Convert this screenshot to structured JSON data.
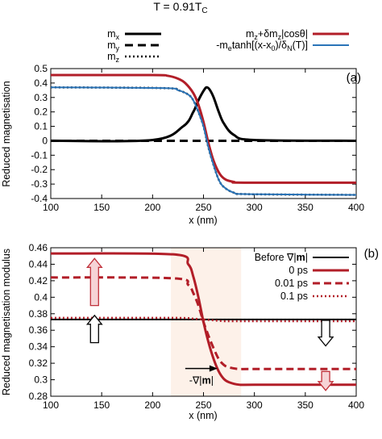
{
  "figure": {
    "title": "T = 0.91T",
    "title_sub": "C"
  },
  "chart_data": [
    {
      "type": "line",
      "panel_label": "(a)",
      "xlabel": "x (nm)",
      "ylabel": "Reduced magnetisation",
      "xlim": [
        100,
        400
      ],
      "ylim": [
        -0.4,
        0.5
      ],
      "xticks": [
        100,
        150,
        200,
        250,
        300,
        350,
        400
      ],
      "yticks": [
        -0.4,
        -0.3,
        -0.2,
        -0.1,
        0,
        0.1,
        0.2,
        0.3,
        0.4,
        0.5
      ],
      "ytick_labels": [
        "-0.4",
        "-0.3",
        "-0.2",
        "-0.1",
        "0",
        "0.1",
        "0.2",
        "0.3",
        "0.4",
        "0.5"
      ],
      "grid": false,
      "legend_left": [
        {
          "label": "m",
          "sub": "x"
        },
        {
          "label": "m",
          "sub": "y"
        },
        {
          "label": "m",
          "sub": "z"
        }
      ],
      "legend_right": [
        {
          "label": "m",
          "sub": "z",
          "rest": "+δm",
          "sub2": "z",
          "rest2": "|cosθ|"
        },
        {
          "label": "-m",
          "sub": "e",
          "rest": "tanh[(x-x",
          "sub2": "0",
          "rest2": ")/δ",
          "sub3": "N",
          "rest3": "(T)]"
        }
      ],
      "series": [
        {
          "x": [
            100,
            200,
            230,
            240,
            245,
            250,
            253,
            256,
            260,
            265,
            270,
            280,
            300,
            400
          ],
          "y": [
            0,
            0.005,
            0.1,
            0.2,
            0.28,
            0.345,
            0.37,
            0.355,
            0.3,
            0.2,
            0.12,
            0.04,
            0.005,
            0
          ]
        },
        {
          "x": [
            100,
            400
          ],
          "y": [
            0,
            0
          ]
        },
        {
          "x": [
            100,
            210,
            225,
            235,
            240,
            245,
            250,
            255,
            260,
            265,
            270,
            280,
            295,
            400
          ],
          "y": [
            0.37,
            0.365,
            0.35,
            0.32,
            0.28,
            0.2,
            0.1,
            -0.05,
            -0.17,
            -0.27,
            -0.32,
            -0.36,
            -0.37,
            -0.375
          ]
        },
        {
          "x": [
            100,
            200,
            215,
            225,
            232,
            240,
            245,
            250,
            255,
            260,
            266,
            272,
            280,
            290,
            400
          ],
          "y": [
            0.455,
            0.455,
            0.45,
            0.43,
            0.4,
            0.33,
            0.25,
            0.13,
            -0.02,
            -0.14,
            -0.23,
            -0.27,
            -0.285,
            -0.29,
            -0.29
          ]
        },
        {
          "x": [
            100,
            210,
            225,
            235,
            240,
            245,
            250,
            255,
            260,
            265,
            270,
            280,
            295,
            400
          ],
          "y": [
            0.37,
            0.365,
            0.35,
            0.32,
            0.28,
            0.2,
            0.1,
            -0.05,
            -0.17,
            -0.27,
            -0.32,
            -0.36,
            -0.37,
            -0.375
          ]
        }
      ]
    },
    {
      "type": "line",
      "panel_label": "(b)",
      "xlabel": "x (nm)",
      "ylabel": "Reduced magnetisation modulus",
      "xlim": [
        100,
        400
      ],
      "ylim": [
        0.28,
        0.46
      ],
      "xticks": [
        100,
        150,
        200,
        250,
        300,
        350,
        400
      ],
      "yticks": [
        0.28,
        0.3,
        0.32,
        0.34,
        0.36,
        0.38,
        0.4,
        0.42,
        0.44,
        0.46
      ],
      "ytick_labels": [
        "0.28",
        "0.3",
        "0.32",
        "0.34",
        "0.36",
        "0.38",
        "0.4",
        "0.42",
        "0.44",
        "0.46"
      ],
      "grid": false,
      "shaded_region_x": [
        218,
        287
      ],
      "legend": [
        {
          "label": "Before ∇|",
          "bold": "m",
          "rest": "|"
        },
        {
          "label": "0 ps"
        },
        {
          "label": "0.01 ps"
        },
        {
          "label": "0.1 ps"
        }
      ],
      "annotation": {
        "text": "-∇|",
        "bold": "m",
        "rest": "|",
        "x": 240,
        "y": 0.297
      },
      "series": [
        {
          "x": [
            100,
            400
          ],
          "y": [
            0.373,
            0.373
          ]
        },
        {
          "x": [
            100,
            220,
            235,
            240,
            245,
            250,
            255,
            260,
            265,
            270,
            275,
            285,
            300,
            400
          ],
          "y": [
            0.453,
            0.452,
            0.44,
            0.425,
            0.4,
            0.37,
            0.345,
            0.325,
            0.31,
            0.301,
            0.297,
            0.294,
            0.294,
            0.294
          ]
        },
        {
          "x": [
            100,
            220,
            235,
            240,
            245,
            250,
            255,
            260,
            265,
            270,
            275,
            285,
            300,
            400
          ],
          "y": [
            0.424,
            0.423,
            0.415,
            0.405,
            0.39,
            0.37,
            0.353,
            0.338,
            0.325,
            0.318,
            0.315,
            0.313,
            0.313,
            0.313
          ]
        },
        {
          "x": [
            100,
            220,
            240,
            250,
            260,
            270,
            280,
            300,
            400
          ],
          "y": [
            0.375,
            0.375,
            0.374,
            0.373,
            0.372,
            0.371,
            0.371,
            0.371,
            0.371
          ]
        }
      ],
      "arrows": [
        {
          "x": 143,
          "from": 0.39,
          "to": 0.447,
          "style": "red"
        },
        {
          "x": 143,
          "from": 0.345,
          "to": 0.378,
          "style": "black"
        },
        {
          "x": 370,
          "from": 0.372,
          "to": 0.341,
          "style": "black"
        },
        {
          "x": 370,
          "from": 0.31,
          "to": 0.287,
          "style": "red"
        }
      ]
    }
  ]
}
